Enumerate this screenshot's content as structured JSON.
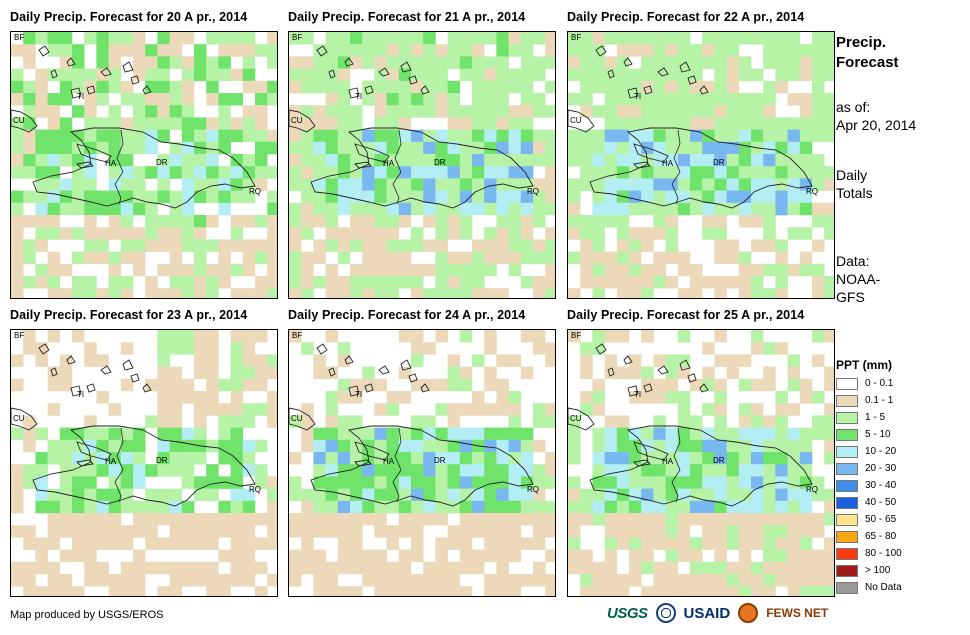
{
  "panels": [
    {
      "title": "Daily Precip. Forecast for 20 A pr., 2014",
      "seed": 1,
      "profile": "p20"
    },
    {
      "title": "Daily Precip. Forecast for 21 A pr., 2014",
      "seed": 2,
      "profile": "p21"
    },
    {
      "title": "Daily Precip. Forecast for 22 A pr., 2014",
      "seed": 3,
      "profile": "p22"
    },
    {
      "title": "Daily Precip. Forecast for 23 A pr., 2014",
      "seed": 4,
      "profile": "p23"
    },
    {
      "title": "Daily Precip. Forecast for 24 A pr., 2014",
      "seed": 5,
      "profile": "p24"
    },
    {
      "title": "Daily Precip. Forecast for 25 A pr., 2014",
      "seed": 6,
      "profile": "p25"
    }
  ],
  "map_labels": {
    "bf": "BF",
    "cu": "CU",
    "ti": "TI",
    "ha": "HA",
    "dr": "DR",
    "rq": "RQ"
  },
  "side": {
    "title_line1": "Precip.",
    "title_line2": "Forecast",
    "asof_line1": "as of:",
    "asof_line2": "Apr 20, 2014",
    "totals_line1": "Daily",
    "totals_line2": "Totals",
    "data_line1": "Data:",
    "data_line2": "NOAA-",
    "data_line3": "GFS"
  },
  "legend": {
    "title": "PPT (mm)",
    "items": [
      {
        "label": "0 - 0.1",
        "color": "#ffffff"
      },
      {
        "label": "0.1 - 1",
        "color": "#ecd9b9"
      },
      {
        "label": "1 - 5",
        "color": "#b6f3a6"
      },
      {
        "label": "5 - 10",
        "color": "#6fe36a"
      },
      {
        "label": "10 - 20",
        "color": "#b3eef5"
      },
      {
        "label": "20 - 30",
        "color": "#78b7ef"
      },
      {
        "label": "30 - 40",
        "color": "#3c8eea"
      },
      {
        "label": "40 - 50",
        "color": "#1a5fe0"
      },
      {
        "label": "50 - 65",
        "color": "#fde389"
      },
      {
        "label": "65 - 80",
        "color": "#f8a614"
      },
      {
        "label": "80 - 100",
        "color": "#f93a10"
      },
      {
        "label": "> 100",
        "color": "#a11a1a"
      },
      {
        "label": "No Data",
        "color": "#9a9a9a"
      }
    ]
  },
  "credit": "Map produced by USGS/EROS",
  "logos": {
    "usgs": "USGS",
    "usaid": "USAID",
    "fews": "FEWS NET"
  }
}
